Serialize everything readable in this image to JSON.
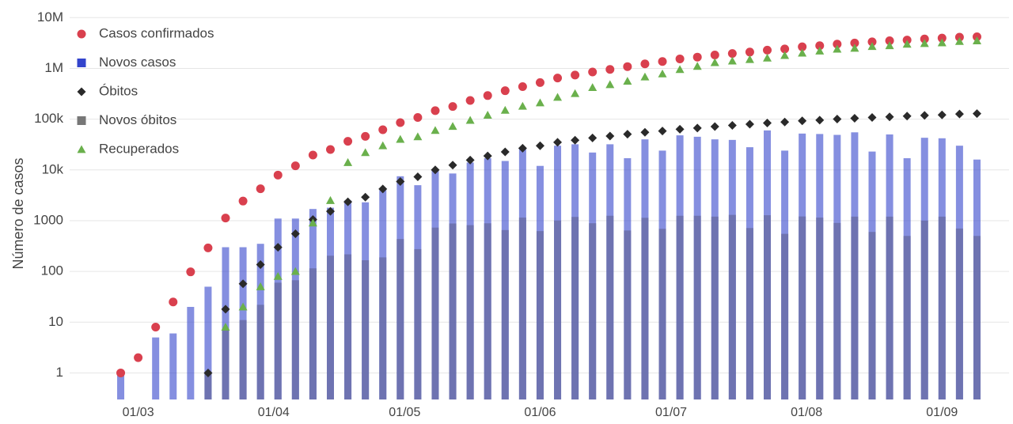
{
  "chart_data": {
    "type": "line",
    "y_label": "Número de casos",
    "log_y": true,
    "grid": true,
    "legend": "upper left",
    "xlim": [
      "24/02",
      "10/09"
    ],
    "xticks": [
      "01/03",
      "01/04",
      "01/05",
      "01/06",
      "01/07",
      "01/08",
      "01/09"
    ],
    "ylim": [
      0.3,
      15000000
    ],
    "yticks": [
      1,
      10,
      100,
      1000,
      {
        "value": 10000,
        "label": "10k"
      },
      {
        "value": 100000,
        "label": "100k"
      },
      {
        "value": 1000000,
        "label": "1M"
      },
      {
        "value": 10000000,
        "label": "10M"
      }
    ],
    "x": [
      "25/02",
      "01/03",
      "05/03",
      "09/03",
      "13/03",
      "17/03",
      "21/03",
      "25/03",
      "29/03",
      "02/04",
      "06/04",
      "10/04",
      "14/04",
      "18/04",
      "22/04",
      "26/04",
      "30/04",
      "04/05",
      "08/05",
      "12/05",
      "16/05",
      "20/05",
      "24/05",
      "28/05",
      "01/06",
      "05/06",
      "09/06",
      "13/06",
      "17/06",
      "21/06",
      "25/06",
      "29/06",
      "03/07",
      "07/07",
      "11/07",
      "15/07",
      "19/07",
      "23/07",
      "27/07",
      "31/07",
      "04/08",
      "08/08",
      "12/08",
      "16/08",
      "20/08",
      "24/08",
      "28/08",
      "01/09",
      "05/09",
      "09/09"
    ],
    "series": [
      {
        "name": "Casos confirmados",
        "type": "line",
        "marker": "circle",
        "color": "#d9404e",
        "values": [
          1,
          2,
          8,
          25,
          98,
          291,
          1128,
          2433,
          4256,
          7910,
          12056,
          19638,
          25262,
          36599,
          45757,
          61888,
          85380,
          107780,
          146894,
          177589,
          233142,
          291579,
          363211,
          438238,
          526447,
          645771,
          739503,
          850514,
          955377,
          1085038,
          1228114,
          1368195,
          1539081,
          1668589,
          1839850,
          1966748,
          2098389,
          2287475,
          2419091,
          2662485,
          2801921,
          3012412,
          3164785,
          3340197,
          3501975,
          3622861,
          3804803,
          3950931,
          4123000,
          4197889
        ]
      },
      {
        "name": "Novos casos",
        "type": "bar",
        "marker": "square",
        "color": "#3344cc",
        "values": [
          1,
          null,
          5,
          6,
          20,
          50,
          300,
          300,
          350,
          1100,
          1100,
          1700,
          1800,
          2500,
          2300,
          4000,
          7500,
          5000,
          10000,
          8500,
          14000,
          17000,
          15000,
          26000,
          12000,
          30000,
          32000,
          22000,
          32000,
          17000,
          40000,
          24000,
          48000,
          45000,
          40000,
          39000,
          28000,
          60000,
          24000,
          52000,
          51000,
          49000,
          55000,
          23000,
          50000,
          17000,
          43000,
          42000,
          30000,
          16000
        ]
      },
      {
        "name": "Óbitos",
        "type": "line",
        "marker": "diamond",
        "color": "#2a2a2a",
        "values": [
          null,
          null,
          null,
          null,
          null,
          1,
          18,
          57,
          136,
          299,
          553,
          1056,
          1532,
          2347,
          2906,
          4205,
          5901,
          7321,
          10017,
          12400,
          15633,
          18859,
          22666,
          26754,
          29937,
          35026,
          38406,
          42720,
          46510,
          50617,
          54971,
          58314,
          63174,
          66741,
          71469,
          75366,
          79488,
          84082,
          87618,
          92475,
          95819,
          100477,
          104201,
          107852,
          111100,
          114744,
          118649,
          121381,
          126203,
          128539
        ]
      },
      {
        "name": "Novos óbitos",
        "type": "bar",
        "marker": "square",
        "color": "#6a6fa8",
        "values": [
          null,
          null,
          null,
          null,
          null,
          1,
          7,
          11,
          22,
          60,
          67,
          115,
          204,
          217,
          166,
          189,
          435,
          275,
          730,
          880,
          816,
          888,
          653,
          1150,
          623,
          1005,
          1185,
          890,
          1250,
          640,
          1140,
          692,
          1250,
          1250,
          1200,
          1300,
          716,
          1280,
          550,
          1210,
          1150,
          905,
          1200,
          600,
          1200,
          500,
          1000,
          1200,
          700,
          500
        ]
      },
      {
        "name": "Recuperados",
        "type": "line",
        "marker": "triangle",
        "color": "#6ab04c",
        "values": [
          null,
          null,
          null,
          null,
          null,
          null,
          8,
          20,
          50,
          80,
          100,
          900,
          2500,
          14000,
          22000,
          30000,
          40000,
          45000,
          60000,
          72000,
          95000,
          120000,
          150000,
          180000,
          210000,
          270000,
          320000,
          420000,
          480000,
          560000,
          680000,
          780000,
          950000,
          1100000,
          1300000,
          1400000,
          1500000,
          1600000,
          1800000,
          2000000,
          2200000,
          2400000,
          2500000,
          2700000,
          2800000,
          3000000,
          3100000,
          3200000,
          3400000,
          3500000
        ]
      }
    ]
  }
}
